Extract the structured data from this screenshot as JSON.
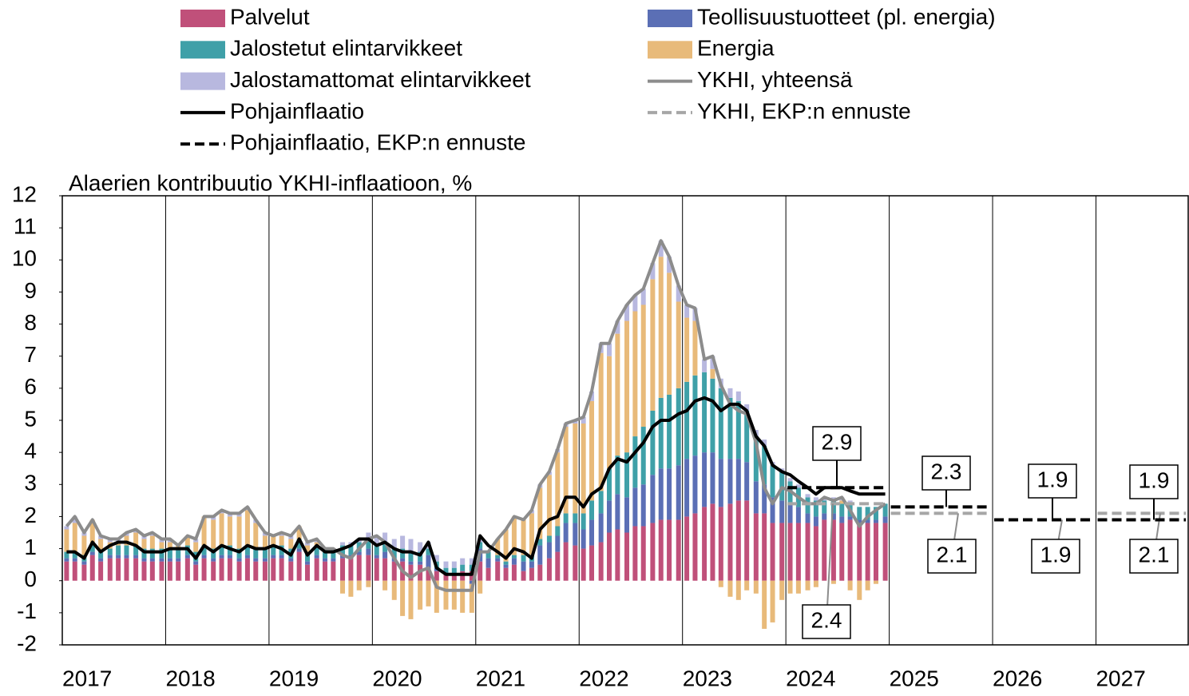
{
  "chart_data": {
    "type": "bar",
    "axis_title": "Alaerien kontribuutio YKHI-inflaatioon, %",
    "x": [
      2017,
      2017.08,
      2017.17,
      2017.25,
      2017.33,
      2017.42,
      2017.5,
      2017.58,
      2017.67,
      2017.75,
      2017.83,
      2017.92,
      2018,
      2018.08,
      2018.17,
      2018.25,
      2018.33,
      2018.42,
      2018.5,
      2018.58,
      2018.67,
      2018.75,
      2018.83,
      2018.92,
      2019,
      2019.08,
      2019.17,
      2019.25,
      2019.33,
      2019.42,
      2019.5,
      2019.58,
      2019.67,
      2019.75,
      2019.83,
      2019.92,
      2020,
      2020.08,
      2020.17,
      2020.25,
      2020.33,
      2020.42,
      2020.5,
      2020.58,
      2020.67,
      2020.75,
      2020.83,
      2020.92,
      2021,
      2021.08,
      2021.17,
      2021.25,
      2021.33,
      2021.42,
      2021.5,
      2021.58,
      2021.67,
      2021.75,
      2021.83,
      2021.92,
      2022,
      2022.08,
      2022.17,
      2022.25,
      2022.33,
      2022.42,
      2022.5,
      2022.58,
      2022.67,
      2022.75,
      2022.83,
      2022.92,
      2023,
      2023.08,
      2023.17,
      2023.25,
      2023.33,
      2023.42,
      2023.5,
      2023.58,
      2023.67,
      2023.75,
      2023.83,
      2023.92,
      2024,
      2024.08,
      2024.17,
      2024.25,
      2024.33,
      2024.42,
      2024.5,
      2024.58,
      2024.67,
      2024.75,
      2024.83,
      2024.92
    ],
    "series": [
      {
        "name": "Palvelut",
        "color": "#c0507a",
        "values": [
          0.6,
          0.6,
          0.5,
          0.8,
          0.6,
          0.7,
          0.7,
          0.7,
          0.7,
          0.6,
          0.6,
          0.6,
          0.6,
          0.6,
          0.7,
          0.5,
          0.7,
          0.6,
          0.7,
          0.7,
          0.6,
          0.7,
          0.6,
          0.6,
          0.7,
          0.7,
          0.6,
          0.9,
          0.5,
          0.7,
          0.6,
          0.6,
          0.7,
          0.7,
          0.8,
          0.8,
          0.7,
          0.7,
          0.6,
          0.6,
          0.5,
          0.5,
          0.4,
          0.3,
          0.2,
          0.2,
          0.3,
          0.3,
          0.6,
          0.4,
          0.6,
          0.4,
          0.5,
          0.3,
          0.4,
          0.5,
          0.7,
          0.9,
          1.2,
          1.1,
          1.0,
          1.1,
          1.2,
          1.5,
          1.6,
          1.5,
          1.7,
          1.7,
          1.8,
          1.9,
          1.9,
          1.9,
          2.0,
          2.1,
          2.3,
          2.4,
          2.3,
          2.4,
          2.5,
          2.5,
          2.1,
          2.1,
          1.8,
          1.8,
          1.8,
          1.8,
          1.8,
          1.7,
          1.9,
          1.9,
          1.8,
          1.9,
          1.8,
          1.8,
          1.8,
          1.8
        ]
      },
      {
        "name": "Teollisuustuotteet (pl. energia)",
        "color": "#5b6fb5",
        "values": [
          0.1,
          0.1,
          0.1,
          0.1,
          0.1,
          0.1,
          0.1,
          0.1,
          0.1,
          0.1,
          0.1,
          0.1,
          0.1,
          0.1,
          0.1,
          0.1,
          0.1,
          0.1,
          0.1,
          0.1,
          0.1,
          0.1,
          0.1,
          0.1,
          0.1,
          0.1,
          0.1,
          0.1,
          0.1,
          0.1,
          0.1,
          0.1,
          0.1,
          0.1,
          0.1,
          0.2,
          0.1,
          0.2,
          0.1,
          0.1,
          0.1,
          0.1,
          0.4,
          0.1,
          0.0,
          0.0,
          0.0,
          -0.1,
          0.4,
          0.3,
          0.1,
          0.1,
          0.2,
          0.3,
          0.2,
          0.6,
          0.5,
          0.5,
          0.6,
          0.7,
          0.6,
          0.8,
          0.9,
          1.0,
          1.1,
          1.1,
          1.2,
          1.3,
          1.5,
          1.6,
          1.6,
          1.7,
          1.8,
          1.8,
          1.7,
          1.6,
          1.5,
          1.4,
          1.3,
          1.2,
          1.0,
          0.9,
          0.8,
          0.7,
          0.6,
          0.5,
          0.3,
          0.3,
          0.2,
          0.2,
          0.2,
          0.1,
          0.1,
          0.1,
          0.1,
          0.2
        ]
      },
      {
        "name": "Jalostetut elintarvikkeet",
        "color": "#3fa0a8",
        "values": [
          0.2,
          0.2,
          0.2,
          0.2,
          0.2,
          0.2,
          0.3,
          0.3,
          0.3,
          0.3,
          0.3,
          0.3,
          0.3,
          0.3,
          0.3,
          0.3,
          0.3,
          0.3,
          0.3,
          0.3,
          0.3,
          0.3,
          0.3,
          0.3,
          0.3,
          0.3,
          0.3,
          0.3,
          0.3,
          0.3,
          0.3,
          0.3,
          0.3,
          0.3,
          0.3,
          0.3,
          0.3,
          0.3,
          0.3,
          0.3,
          0.3,
          0.3,
          0.2,
          0.2,
          0.2,
          0.2,
          0.2,
          0.2,
          0.2,
          0.2,
          0.1,
          0.1,
          0.1,
          0.2,
          0.2,
          0.2,
          0.2,
          0.3,
          0.3,
          0.3,
          0.5,
          0.6,
          0.7,
          1.0,
          1.2,
          1.4,
          1.6,
          1.8,
          2.0,
          2.2,
          2.3,
          2.4,
          2.4,
          2.5,
          2.5,
          2.3,
          2.2,
          1.9,
          1.8,
          1.6,
          1.4,
          1.2,
          1.0,
          0.9,
          0.7,
          0.6,
          0.5,
          0.5,
          0.4,
          0.4,
          0.4,
          0.4,
          0.4,
          0.4,
          0.4,
          0.4
        ]
      },
      {
        "name": "Energia",
        "color": "#e8ba7a",
        "values": [
          0.7,
          0.9,
          0.6,
          0.8,
          0.4,
          0.2,
          0.1,
          0.3,
          0.4,
          0.3,
          0.4,
          0.2,
          0.2,
          0.1,
          0.3,
          0.3,
          0.9,
          0.9,
          1.0,
          0.9,
          1.0,
          1.1,
          0.8,
          0.4,
          0.3,
          0.3,
          0.3,
          0.4,
          0.2,
          0.1,
          0.0,
          0.0,
          -0.4,
          -0.5,
          -0.3,
          -0.2,
          0.0,
          -0.3,
          -0.6,
          -1.1,
          -1.2,
          -0.9,
          -0.8,
          -1.0,
          -0.9,
          -0.9,
          -1.0,
          -0.9,
          -0.4,
          0.0,
          0.5,
          1.0,
          1.2,
          1.1,
          1.3,
          1.6,
          1.9,
          2.3,
          2.7,
          2.8,
          2.8,
          3.1,
          4.3,
          3.5,
          3.8,
          4.1,
          3.9,
          3.8,
          4.1,
          4.4,
          3.8,
          2.7,
          2.0,
          1.7,
          0.0,
          0.3,
          -0.2,
          -0.5,
          -0.6,
          -0.3,
          -0.4,
          -1.5,
          -1.3,
          -0.6,
          -0.4,
          -0.4,
          -0.3,
          -0.2,
          0.0,
          -0.1,
          0.1,
          -0.3,
          -0.6,
          -0.3,
          -0.1,
          0.0
        ]
      },
      {
        "name": "Jalostamattomat elintarvikkeet",
        "color": "#b8b8df",
        "values": [
          0.1,
          0.2,
          0.1,
          0.0,
          0.1,
          0.1,
          0.1,
          0.1,
          0.1,
          0.1,
          0.1,
          0.1,
          0.1,
          0.0,
          0.0,
          0.1,
          0.0,
          0.1,
          0.1,
          0.1,
          0.1,
          0.1,
          0.1,
          0.1,
          0.0,
          0.1,
          0.1,
          0.0,
          0.1,
          0.1,
          0.0,
          0.0,
          0.1,
          0.1,
          0.1,
          0.2,
          0.3,
          0.3,
          0.3,
          0.4,
          0.4,
          0.3,
          0.2,
          0.2,
          0.2,
          0.2,
          0.2,
          0.2,
          0.1,
          0.0,
          0.0,
          0.0,
          0.0,
          0.0,
          0.1,
          0.1,
          0.1,
          0.1,
          0.1,
          0.1,
          0.2,
          0.3,
          0.3,
          0.4,
          0.4,
          0.5,
          0.5,
          0.5,
          0.5,
          0.5,
          0.5,
          0.5,
          0.4,
          0.4,
          0.4,
          0.4,
          0.3,
          0.3,
          0.3,
          0.2,
          0.2,
          0.2,
          0.1,
          0.1,
          0.1,
          0.1,
          0.1,
          0.1,
          0.1,
          0.1,
          0.1,
          0.1,
          0.0,
          0.0,
          0.0,
          0.0
        ]
      }
    ],
    "lines": [
      {
        "name": "YKHI, yhteensä",
        "color": "#8c8c8c",
        "values": [
          1.7,
          2.0,
          1.5,
          1.9,
          1.4,
          1.3,
          1.3,
          1.5,
          1.6,
          1.4,
          1.5,
          1.3,
          1.3,
          1.1,
          1.4,
          1.3,
          2.0,
          2.0,
          2.2,
          2.1,
          2.1,
          2.3,
          1.9,
          1.5,
          1.4,
          1.5,
          1.4,
          1.7,
          1.2,
          1.3,
          1.0,
          1.0,
          0.8,
          0.7,
          1.0,
          1.3,
          1.4,
          1.2,
          0.7,
          0.3,
          0.1,
          0.3,
          0.4,
          -0.2,
          -0.3,
          -0.3,
          -0.3,
          -0.3,
          0.9,
          0.9,
          1.3,
          1.6,
          2.0,
          1.9,
          2.2,
          3.0,
          3.4,
          4.1,
          4.9,
          5.0,
          5.1,
          5.9,
          7.4,
          7.4,
          8.1,
          8.6,
          8.9,
          9.1,
          9.9,
          10.6,
          10.1,
          9.2,
          8.6,
          8.5,
          6.9,
          7.0,
          6.1,
          5.5,
          5.3,
          5.2,
          4.3,
          2.9,
          2.4,
          2.9,
          2.8,
          2.6,
          2.4,
          2.4,
          2.6,
          2.5,
          2.6,
          2.2,
          1.7,
          2.0,
          2.2,
          2.4
        ]
      },
      {
        "name": "Pohjainflaatio",
        "color": "#000000",
        "values": [
          0.9,
          0.9,
          0.7,
          1.2,
          0.9,
          1.1,
          1.2,
          1.2,
          1.1,
          0.9,
          0.9,
          0.9,
          1.0,
          1.0,
          1.0,
          0.7,
          1.1,
          0.9,
          1.1,
          1.0,
          0.9,
          1.1,
          1.0,
          1.0,
          1.1,
          1.0,
          0.8,
          1.3,
          0.8,
          1.1,
          0.9,
          0.9,
          1.0,
          1.1,
          1.3,
          1.3,
          1.1,
          1.2,
          1.0,
          0.9,
          0.9,
          0.8,
          1.2,
          0.4,
          0.2,
          0.2,
          0.2,
          0.2,
          1.4,
          1.1,
          0.9,
          0.7,
          1.0,
          0.9,
          0.7,
          1.6,
          1.9,
          2.0,
          2.6,
          2.6,
          2.3,
          2.7,
          2.9,
          3.5,
          3.8,
          3.7,
          4.0,
          4.3,
          4.8,
          5.0,
          5.0,
          5.2,
          5.3,
          5.6,
          5.7,
          5.6,
          5.3,
          5.5,
          5.5,
          5.3,
          4.5,
          4.2,
          3.6,
          3.4,
          3.3,
          3.1,
          2.9,
          2.7,
          2.9,
          2.9,
          2.9,
          2.8,
          2.7,
          2.7,
          2.7,
          2.7
        ]
      }
    ],
    "forecasts": [
      {
        "name": "YKHI, EKP:n ennuste",
        "color": "#a6a6a6",
        "x": [
          2024,
          2025,
          2026,
          2027
        ],
        "values": [
          2.4,
          2.1,
          1.9,
          2.1
        ]
      },
      {
        "name": "Pohjainflaatio, EKP:n ennuste",
        "color": "#000000",
        "x": [
          2024,
          2025,
          2026,
          2027
        ],
        "values": [
          2.9,
          2.3,
          1.9,
          1.9
        ]
      }
    ],
    "xlim": [
      2017,
      2027.9
    ],
    "xticks": [
      2017,
      2018,
      2019,
      2020,
      2021,
      2022,
      2023,
      2024,
      2025,
      2026,
      2027
    ],
    "ylim": [
      -2,
      12
    ],
    "yticks": [
      12,
      11,
      10,
      9,
      8,
      7,
      6,
      5,
      4,
      3,
      2,
      1,
      0,
      -1,
      -2
    ],
    "grid": true
  }
}
